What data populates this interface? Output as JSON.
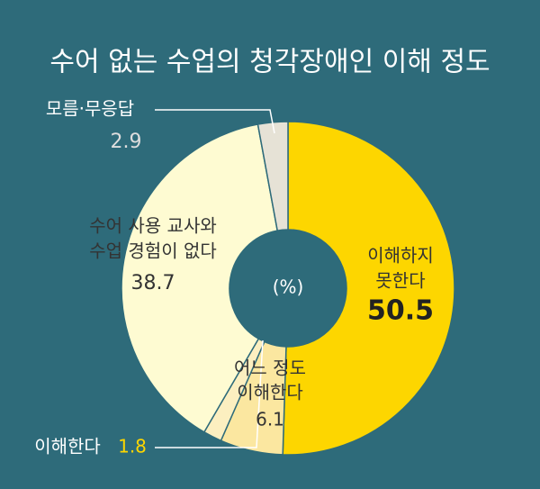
{
  "chart_data": {
    "type": "donut",
    "title": "수어 없는 수업의 청각장애인 이해 정도",
    "center_label": "(%)",
    "categories": [
      [
        "이해하지",
        "못한다"
      ],
      [
        "어느 정도",
        "이해한다"
      ],
      [
        "이해한다"
      ],
      [
        "수어 사용 교사와",
        "수업 경험이 없다"
      ],
      [
        "모름·무응답"
      ]
    ],
    "values": [
      50.5,
      6.1,
      1.8,
      38.7,
      2.9
    ],
    "colors": [
      "#fdd600",
      "#fbe7a0",
      "#fcefc0",
      "#fefbd2",
      "#e6e2d6"
    ]
  }
}
